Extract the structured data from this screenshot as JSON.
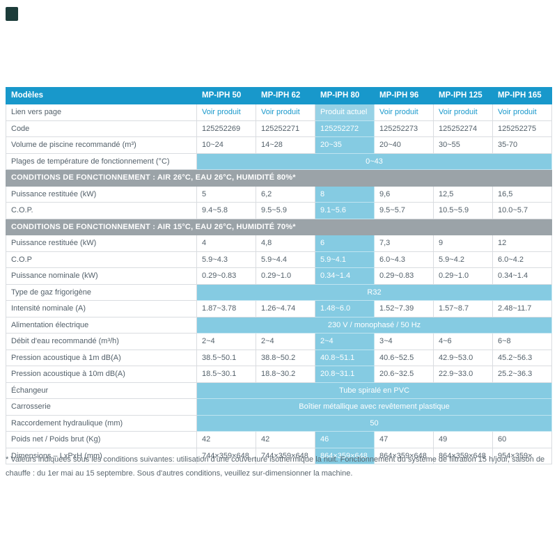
{
  "colors": {
    "accent_blue": "#1898cb",
    "highlight_blue": "#85cbe2",
    "section_gray": "#9ba3a8",
    "link_blue": "#1898cb"
  },
  "table": {
    "header": {
      "label": "Modèles",
      "models": [
        "MP-IPH 50",
        "MP-IPH 62",
        "MP-IPH 80",
        "MP-IPH 96",
        "MP-IPH 125",
        "MP-IPH 165"
      ]
    },
    "current_model_index": 2,
    "rows": [
      {
        "type": "links",
        "label": "Lien vers page",
        "values": [
          "Voir produit",
          "Voir produit",
          "Produit actuel",
          "Voir produit",
          "Voir produit",
          "Voir produit"
        ]
      },
      {
        "type": "data",
        "label": "Code",
        "values": [
          "125252269",
          "125252271",
          "125252272",
          "125252273",
          "125252274",
          "125252275"
        ]
      },
      {
        "type": "data",
        "label": "Volume de piscine recommandé (m³)",
        "values": [
          "10~24",
          "14~28",
          "20~35",
          "20~40",
          "30~55",
          "35-70"
        ]
      },
      {
        "type": "span",
        "label": "Plages de température de fonctionnement (°C)",
        "value": "0~43"
      },
      {
        "type": "section",
        "label": "CONDITIONS DE FONCTIONNEMENT : AIR 26°C, EAU 26°C, HUMIDITÉ 80%*"
      },
      {
        "type": "data",
        "label": "Puissance restituée (kW)",
        "values": [
          "5",
          "6,2",
          "8",
          "9,6",
          "12,5",
          "16,5"
        ]
      },
      {
        "type": "data",
        "label": "C.O.P.",
        "values": [
          "9.4~5.8",
          "9.5~5.9",
          "9.1~5.6",
          "9.5~5.7",
          "10.5~5.9",
          "10.0~5.7"
        ]
      },
      {
        "type": "section",
        "label": "CONDITIONS DE FONCTIONNEMENT : AIR 15°C, EAU 26°C, HUMIDITÉ 70%*"
      },
      {
        "type": "data",
        "label": "Puissance restituée (kW)",
        "values": [
          "4",
          "4,8",
          "6",
          "7,3",
          "9",
          "12"
        ]
      },
      {
        "type": "data",
        "label": "C.O.P",
        "values": [
          "5.9~4.3",
          "5.9~4.4",
          "5.9~4.1",
          "6.0~4.3",
          "5.9~4.2",
          "6.0~4.2"
        ]
      },
      {
        "type": "data",
        "label": "Puissance nominale (kW)",
        "values": [
          "0.29~0.83",
          "0.29~1.0",
          "0.34~1.4",
          "0.29~0.83",
          "0.29~1.0",
          "0.34~1.4"
        ]
      },
      {
        "type": "span",
        "label": "Type de gaz frigorigène",
        "value": "R32"
      },
      {
        "type": "data",
        "label": "Intensité nominale (A)",
        "values": [
          "1.87~3.78",
          "1.26~4.74",
          "1.48~6.0",
          "1.52~7.39",
          "1.57~8.7",
          "2.48~11.7"
        ]
      },
      {
        "type": "span",
        "label": "Alimentation électrique",
        "value": "230 V / monophasé / 50 Hz"
      },
      {
        "type": "data",
        "label": "Débit d'eau recommandé (m³/h)",
        "values": [
          "2~4",
          "2~4",
          "2~4",
          "3~4",
          "4~6",
          "6~8"
        ]
      },
      {
        "type": "data",
        "label": "Pression acoustique à 1m dB(A)",
        "values": [
          "38.5~50.1",
          "38.8~50.2",
          "40.8~51.1",
          "40.6~52.5",
          "42.9~53.0",
          "45.2~56.3"
        ]
      },
      {
        "type": "data",
        "label": "Pression acoustique à 10m dB(A)",
        "values": [
          "18.5~30.1",
          "18.8~30.2",
          "20.8~31.1",
          "20.6~32.5",
          "22.9~33.0",
          "25.2~36.3"
        ]
      },
      {
        "type": "span",
        "label": "Échangeur",
        "value": "Tube spiralé en PVC"
      },
      {
        "type": "span",
        "label": "Carrosserie",
        "value": "Boîtier métallique avec revêtement plastique"
      },
      {
        "type": "span",
        "label": "Raccordement hydraulique (mm)",
        "value": "50"
      },
      {
        "type": "data",
        "label": "Poids net / Poids brut (Kg)",
        "values": [
          "42",
          "42",
          "46",
          "47",
          "49",
          "60"
        ]
      },
      {
        "type": "data",
        "label": "Dimensions – LxPxH (mm)",
        "values": [
          "744×359×648",
          "744×359×648",
          "864×359×648",
          "864×359×648",
          "864×359×648",
          "954×359×"
        ]
      }
    ]
  },
  "footnote": "* Valeurs indiquées sous les conditions suivantes: utilisation d'une couverture isothermique la nuit. Fonctionnement du système de filtration 15 h/jour, saison de chauffe : du 1er mai au 15 septembre. Sous d'autres conditions, veuillez sur-dimensionner la machine."
}
